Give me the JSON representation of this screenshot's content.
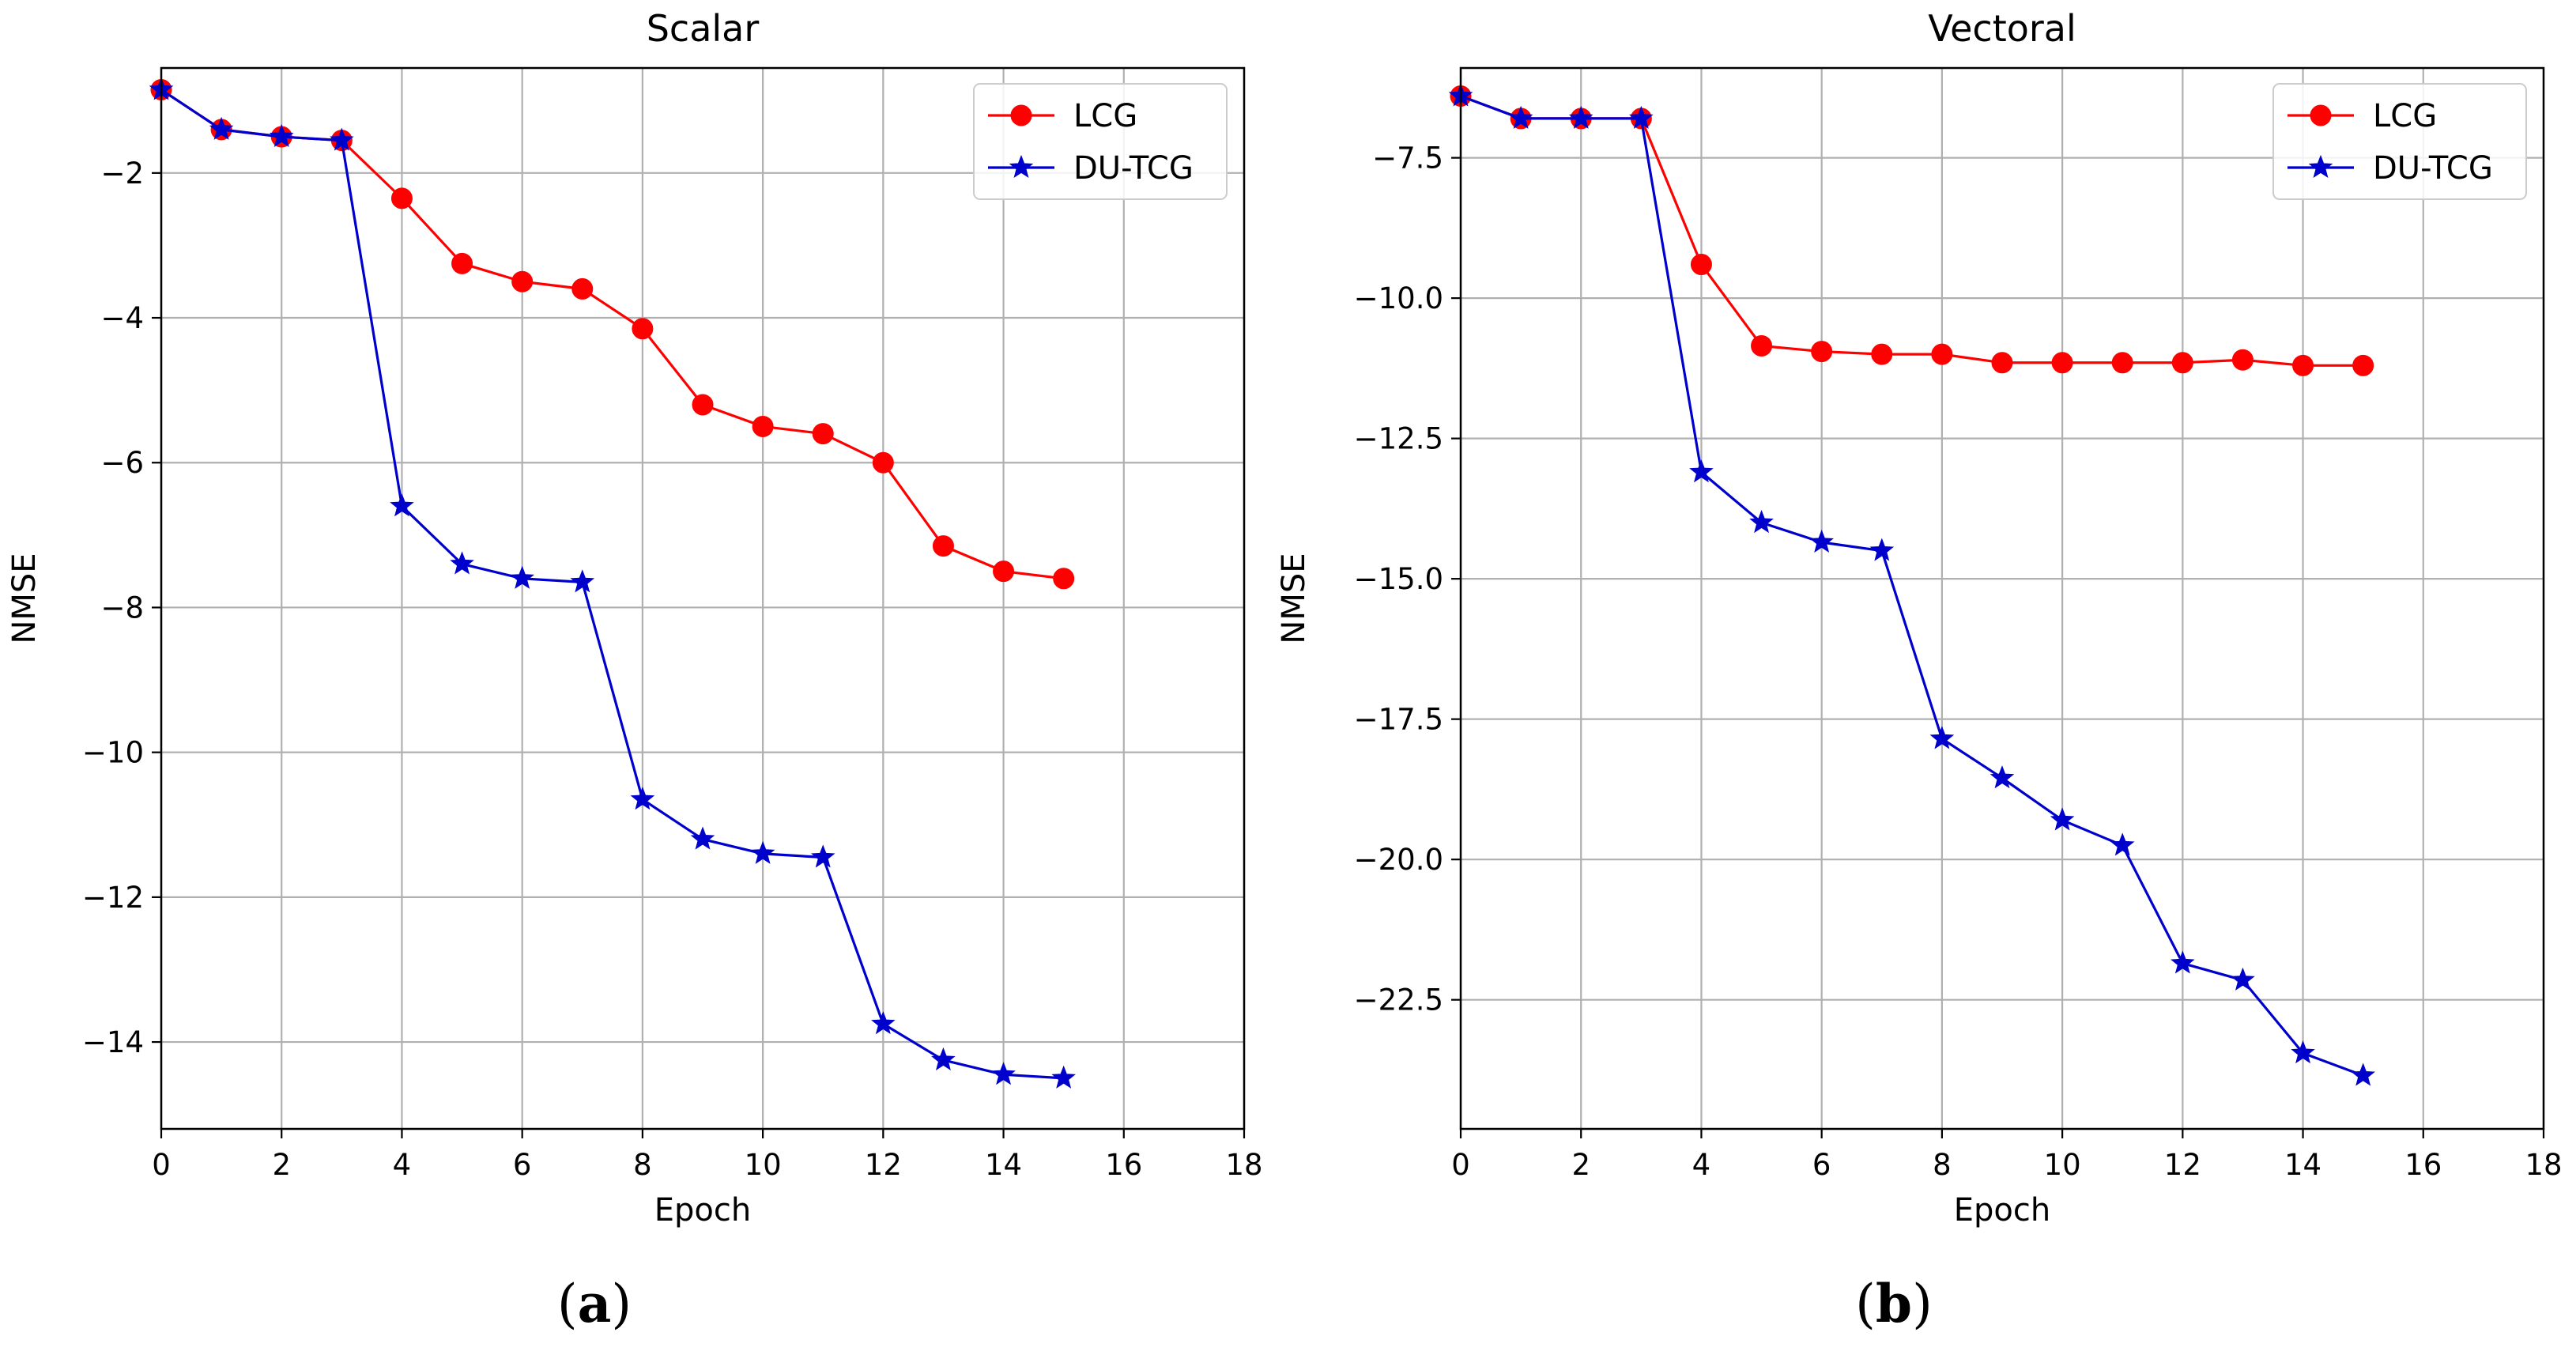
{
  "chart_data": [
    {
      "type": "line",
      "title": "Scalar",
      "xlabel": "Epoch",
      "ylabel": "NMSE",
      "xlim": [
        0,
        18
      ],
      "ylim": [
        -15.2,
        -0.55
      ],
      "xticks": [
        0,
        2,
        4,
        6,
        8,
        10,
        12,
        14,
        16,
        18
      ],
      "yticks": [
        -2,
        -4,
        -6,
        -8,
        -10,
        -12,
        -14
      ],
      "grid": true,
      "legend_position": "top-right",
      "x": [
        0,
        1,
        2,
        3,
        4,
        5,
        6,
        7,
        8,
        9,
        10,
        11,
        12,
        13,
        14,
        15
      ],
      "series": [
        {
          "name": "LCG",
          "color": "#ff0000",
          "marker": "circle",
          "values": [
            -0.85,
            -1.4,
            -1.5,
            -1.55,
            -2.35,
            -3.25,
            -3.5,
            -3.6,
            -4.15,
            -5.2,
            -5.5,
            -5.6,
            -6.0,
            -7.15,
            -7.5,
            -7.6
          ]
        },
        {
          "name": "DU-TCG",
          "color": "#0000cc",
          "marker": "star",
          "values": [
            -0.85,
            -1.4,
            -1.5,
            -1.55,
            -6.6,
            -7.4,
            -7.6,
            -7.65,
            -10.65,
            -11.2,
            -11.4,
            -11.45,
            -13.75,
            -14.25,
            -14.45,
            -14.5
          ]
        }
      ],
      "caption": {
        "open": "(",
        "letter": "a",
        "close": ")"
      }
    },
    {
      "type": "line",
      "title": "Vectoral",
      "xlabel": "Epoch",
      "ylabel": "NMSE",
      "xlim": [
        0,
        18
      ],
      "ylim": [
        -24.8,
        -5.9
      ],
      "xticks": [
        0,
        2,
        4,
        6,
        8,
        10,
        12,
        14,
        16,
        18
      ],
      "yticks": [
        -7.5,
        -10.0,
        -12.5,
        -15.0,
        -17.5,
        -20.0,
        -22.5
      ],
      "grid": true,
      "legend_position": "top-right",
      "x": [
        0,
        1,
        2,
        3,
        4,
        5,
        6,
        7,
        8,
        9,
        10,
        11,
        12,
        13,
        14,
        15
      ],
      "series": [
        {
          "name": "LCG",
          "color": "#ff0000",
          "marker": "circle",
          "values": [
            -6.4,
            -6.8,
            -6.8,
            -6.8,
            -9.4,
            -10.85,
            -10.95,
            -11.0,
            -11.0,
            -11.15,
            -11.15,
            -11.15,
            -11.15,
            -11.1,
            -11.2,
            -11.2
          ]
        },
        {
          "name": "DU-TCG",
          "color": "#0000cc",
          "marker": "star",
          "values": [
            -6.4,
            -6.8,
            -6.8,
            -6.8,
            -13.1,
            -14.0,
            -14.35,
            -14.5,
            -17.85,
            -18.55,
            -19.3,
            -19.75,
            -21.85,
            -22.15,
            -23.45,
            -23.85
          ]
        }
      ],
      "caption": {
        "open": "(",
        "letter": "b",
        "close": ")"
      }
    }
  ]
}
